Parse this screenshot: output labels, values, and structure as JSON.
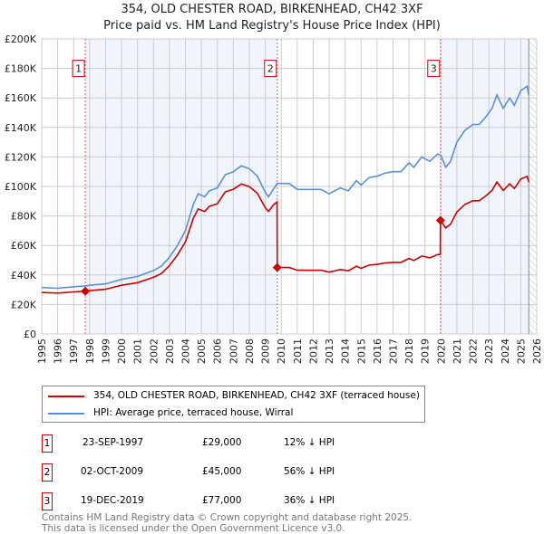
{
  "chart_data": {
    "type": "line",
    "title": "354, OLD CHESTER ROAD, BIRKENHEAD, CH42 3XF",
    "subtitle": "Price paid vs. HM Land Registry's House Price Index (HPI)",
    "xlim": [
      1995,
      2026
    ],
    "ylim": [
      0,
      200000
    ],
    "x_ticks": [
      "1995",
      "1996",
      "1997",
      "1998",
      "1999",
      "2000",
      "2001",
      "2002",
      "2003",
      "2004",
      "2005",
      "2006",
      "2007",
      "2008",
      "2009",
      "2010",
      "2011",
      "2012",
      "2013",
      "2014",
      "2015",
      "2016",
      "2017",
      "2018",
      "2019",
      "2020",
      "2021",
      "2022",
      "2023",
      "2024",
      "2025",
      "2026"
    ],
    "y_ticks": [
      {
        "v": 0,
        "label": "£0"
      },
      {
        "v": 20000,
        "label": "£20K"
      },
      {
        "v": 40000,
        "label": "£40K"
      },
      {
        "v": 60000,
        "label": "£60K"
      },
      {
        "v": 80000,
        "label": "£80K"
      },
      {
        "v": 100000,
        "label": "£100K"
      },
      {
        "v": 120000,
        "label": "£120K"
      },
      {
        "v": 140000,
        "label": "£140K"
      },
      {
        "v": 160000,
        "label": "£160K"
      },
      {
        "v": 180000,
        "label": "£180K"
      },
      {
        "v": 200000,
        "label": "£200K"
      }
    ],
    "grid": true,
    "data_end": 2025.5,
    "series": [
      {
        "name": "354, OLD CHESTER ROAD, BIRKENHEAD, CH42 3XF (terraced house)",
        "color": "#cc0000",
        "x": [
          1995,
          1996,
          1997,
          1997.73,
          1998,
          1999,
          2000,
          2001,
          2002,
          2002.5,
          2003,
          2003.5,
          2004,
          2004.5,
          2004.8,
          2005.2,
          2005.5,
          2006,
          2006.5,
          2007,
          2007.5,
          2008,
          2008.5,
          2009,
          2009.2,
          2009.5,
          2009.74,
          2009.75,
          2010.5,
          2011,
          2012,
          2012.5,
          2013,
          2013.7,
          2014.2,
          2014.7,
          2015,
          2015.5,
          2016,
          2016.5,
          2017,
          2017.5,
          2018,
          2018.3,
          2018.8,
          2019.3,
          2019.8,
          2019.96,
          2019.97,
          2020.3,
          2020.6,
          2021,
          2021.5,
          2022,
          2022.4,
          2022.8,
          2023.2,
          2023.5,
          2023.9,
          2024.3,
          2024.6,
          2025,
          2025.4,
          2025.5
        ],
        "y": [
          28100,
          27700,
          28500,
          29000,
          29400,
          30300,
          33000,
          34800,
          38400,
          41000,
          46400,
          53500,
          62400,
          78500,
          84700,
          83000,
          86500,
          88300,
          96300,
          98100,
          101700,
          99900,
          95400,
          85600,
          83000,
          87400,
          89500,
          45000,
          45000,
          43200,
          43200,
          43200,
          41900,
          43700,
          42800,
          45900,
          44500,
          46700,
          47200,
          48100,
          48500,
          48500,
          51200,
          49800,
          52900,
          51600,
          53800,
          54000,
          77000,
          71900,
          74400,
          82700,
          87800,
          90300,
          90300,
          93500,
          97300,
          103000,
          97300,
          101800,
          98600,
          105000,
          106800,
          103000
        ]
      },
      {
        "name": "HPI: Average price, terraced house, Wirral",
        "color": "#5b8fd6",
        "x": [
          1995,
          1996,
          1997,
          1997.73,
          1998,
          1999,
          2000,
          2001,
          2002,
          2002.5,
          2003,
          2003.5,
          2004,
          2004.5,
          2004.8,
          2005.2,
          2005.5,
          2006,
          2006.5,
          2007,
          2007.5,
          2008,
          2008.5,
          2009,
          2009.2,
          2009.5,
          2009.75,
          2010.5,
          2011,
          2012,
          2012.5,
          2013,
          2013.7,
          2014.2,
          2014.7,
          2015,
          2015.5,
          2016,
          2016.5,
          2017,
          2017.5,
          2018,
          2018.3,
          2018.8,
          2019.3,
          2019.8,
          2020,
          2020.3,
          2020.6,
          2021,
          2021.5,
          2022,
          2022.4,
          2022.8,
          2023.2,
          2023.5,
          2023.9,
          2024.3,
          2024.6,
          2025,
          2025.4,
          2025.5
        ],
        "y": [
          31500,
          31000,
          32000,
          32500,
          33000,
          34000,
          37000,
          39000,
          43000,
          46000,
          52000,
          60000,
          70000,
          88000,
          95000,
          93000,
          97000,
          99000,
          108000,
          110000,
          114000,
          112000,
          107000,
          96000,
          93000,
          98000,
          102000,
          102000,
          98000,
          98000,
          98000,
          95000,
          99000,
          97000,
          104000,
          101000,
          106000,
          107000,
          109000,
          110000,
          110000,
          116000,
          113000,
          120000,
          117000,
          122000,
          121000,
          113000,
          117000,
          130000,
          138000,
          142000,
          142000,
          147000,
          153000,
          162000,
          153000,
          160000,
          155000,
          165000,
          168000,
          162000
        ]
      }
    ],
    "sales": [
      {
        "n": "1",
        "x": 1997.73,
        "y": 29000,
        "date": "23-SEP-1997",
        "price": "£29,000",
        "hpi": "12% ↓ HPI"
      },
      {
        "n": "2",
        "x": 2009.75,
        "y": 45000,
        "date": "02-OCT-2009",
        "price": "£45,000",
        "hpi": "56% ↓ HPI"
      },
      {
        "n": "3",
        "x": 2019.97,
        "y": 77000,
        "date": "19-DEC-2019",
        "price": "£77,000",
        "hpi": "36% ↓ HPI"
      }
    ],
    "legend": {
      "placement": "bottom",
      "entries": [
        "354, OLD CHESTER ROAD, BIRKENHEAD, CH42 3XF (terraced house)",
        "HPI: Average price, terraced house, Wirral"
      ]
    }
  },
  "footer": {
    "line1": "Contains HM Land Registry data © Crown copyright and database right 2025.",
    "line2": "This data is licensed under the Open Government Licence v3.0."
  }
}
